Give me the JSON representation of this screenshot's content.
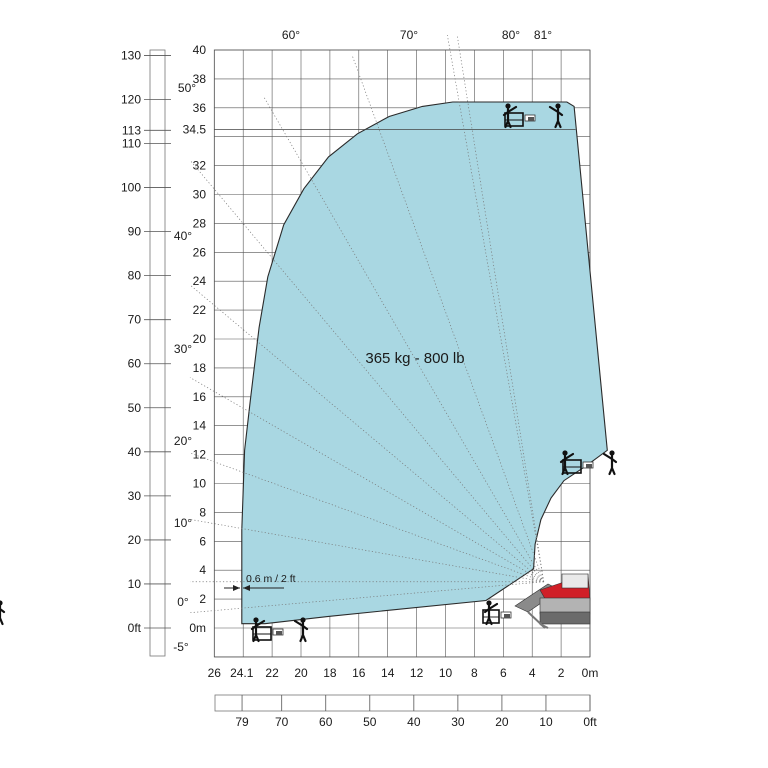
{
  "chart_data": {
    "type": "area",
    "title": "",
    "capacity_label": "365 kg - 800 lb",
    "ylim_m": [
      -2,
      40
    ],
    "xlim_m": [
      0,
      26
    ],
    "y_ticks_m": [
      "40",
      "38",
      "36",
      "34.5",
      "32",
      "30",
      "28",
      "26",
      "24",
      "22",
      "20",
      "18",
      "16",
      "14",
      "12",
      "10",
      "8",
      "6",
      "4",
      "2",
      "0m"
    ],
    "y_tick_values_m": [
      40,
      38,
      36,
      34.5,
      32,
      30,
      28,
      26,
      24,
      22,
      20,
      18,
      16,
      14,
      12,
      10,
      8,
      6,
      4,
      2,
      0
    ],
    "y_ticks_ft": [
      "130",
      "120",
      "113",
      "110",
      "100",
      "90",
      "80",
      "70",
      "60",
      "50",
      "40",
      "30",
      "20",
      "10",
      "0ft"
    ],
    "y_tick_values_ft": [
      130,
      120,
      113,
      110,
      100,
      90,
      80,
      70,
      60,
      50,
      40,
      30,
      20,
      10,
      0
    ],
    "x_ticks_m": [
      "26",
      "24.1",
      "22",
      "20",
      "18",
      "16",
      "14",
      "12",
      "10",
      "8",
      "6",
      "4",
      "2",
      "0m"
    ],
    "x_tick_values_m": [
      26,
      24.1,
      22,
      20,
      18,
      16,
      14,
      12,
      10,
      8,
      6,
      4,
      2,
      0
    ],
    "x_ticks_ft": [
      "79",
      "70",
      "60",
      "50",
      "40",
      "30",
      "20",
      "10",
      "0ft"
    ],
    "x_tick_values_ft": [
      79,
      70,
      60,
      50,
      40,
      30,
      20,
      10,
      0
    ],
    "angles": [
      {
        "label": "60°",
        "deg": 60
      },
      {
        "label": "70°",
        "deg": 70
      },
      {
        "label": "80°",
        "deg": 80
      },
      {
        "label": "81°",
        "deg": 81
      },
      {
        "label": "50°",
        "deg": 50
      },
      {
        "label": "40°",
        "deg": 40
      },
      {
        "label": "30°",
        "deg": 30
      },
      {
        "label": "20°",
        "deg": 20
      },
      {
        "label": "10°",
        "deg": 10
      },
      {
        "label": "0°",
        "deg": 0
      },
      {
        "label": "-5°",
        "deg": -5
      }
    ],
    "offset_label": "0.6 m / 2 ft",
    "envelope_m": [
      [
        24.1,
        0.3
      ],
      [
        24.1,
        6.8
      ],
      [
        23.9,
        12.3
      ],
      [
        23.5,
        15.8
      ],
      [
        22.9,
        20.8
      ],
      [
        22.3,
        24.3
      ],
      [
        21.2,
        27.9
      ],
      [
        19.8,
        30.4
      ],
      [
        18.1,
        32.6
      ],
      [
        16.1,
        34.2
      ],
      [
        13.9,
        35.4
      ],
      [
        11.6,
        36.1
      ],
      [
        9.5,
        36.4
      ],
      [
        7.2,
        36.4
      ],
      [
        4.6,
        36.4
      ],
      [
        1.6,
        36.4
      ],
      [
        1.1,
        36.1
      ],
      [
        -1.2,
        12.3
      ],
      [
        0.3,
        11.2
      ],
      [
        0.9,
        10.8
      ],
      [
        1.8,
        10.2
      ],
      [
        2.7,
        9.0
      ],
      [
        3.4,
        7.5
      ],
      [
        3.8,
        5.8
      ],
      [
        3.9,
        4.1
      ],
      [
        7.2,
        1.9
      ],
      [
        18.1,
        0.8
      ],
      [
        22.5,
        0.3
      ]
    ],
    "colors": {
      "envelope_fill": "#a9d7e2",
      "envelope_stroke": "#2a2a2a",
      "grid": "#555555",
      "machine_red": "#d01f27",
      "machine_grey": "#8a8a8a"
    }
  }
}
